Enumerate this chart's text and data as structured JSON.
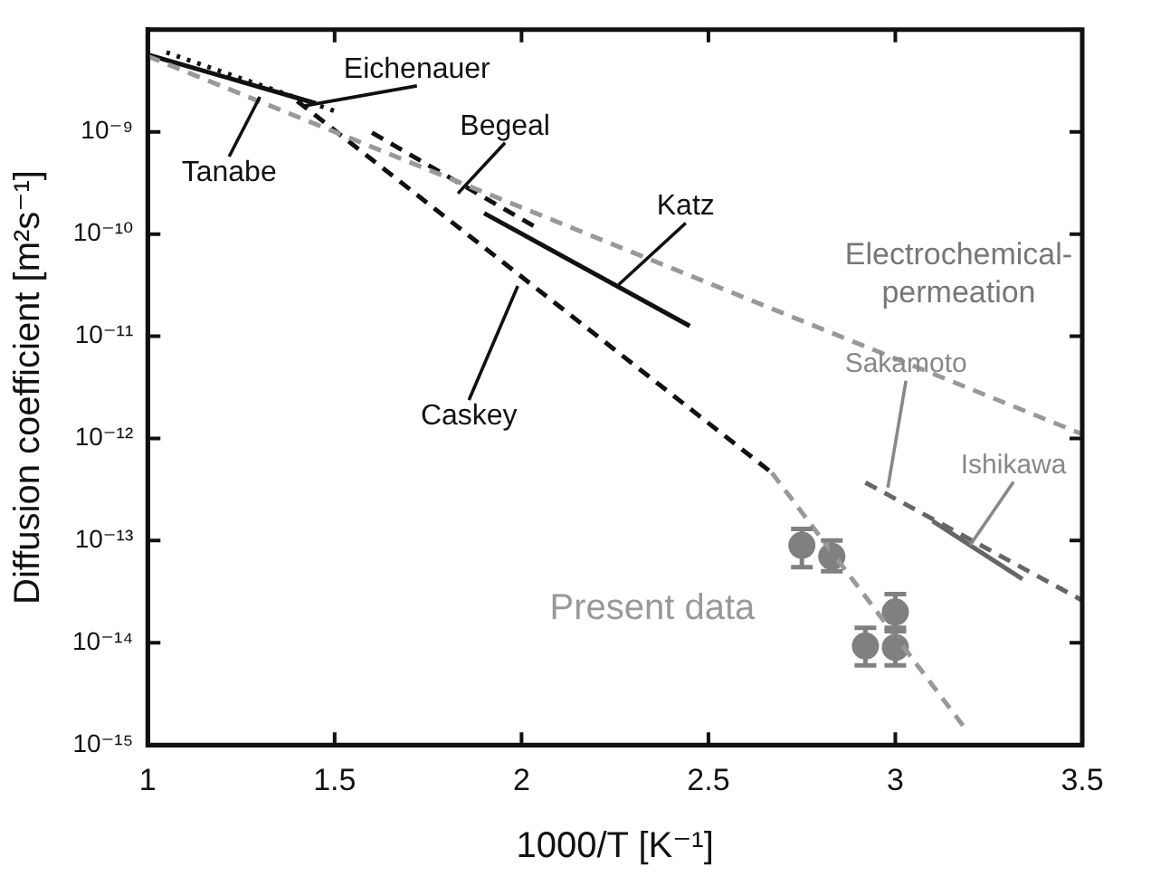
{
  "chart_data": {
    "type": "line",
    "xlabel": "1000/T [K⁻¹]",
    "ylabel": "Diffusion coefficient [m²s⁻¹]",
    "log": "y",
    "grid": false,
    "legend": false,
    "xlim": [
      1,
      3.5
    ],
    "xticks": [
      1,
      1.5,
      2,
      2.5,
      3,
      3.5
    ],
    "ylim": [
      1e-15,
      1e-08
    ],
    "yticks": [
      {
        "value": 1e-15,
        "label": "10⁻¹⁵"
      },
      {
        "value": 1e-14,
        "label": "10⁻¹⁴"
      },
      {
        "value": 1e-13,
        "label": "10⁻¹³"
      },
      {
        "value": 1e-12,
        "label": "10⁻¹²"
      },
      {
        "value": 1e-11,
        "label": "10⁻¹¹"
      },
      {
        "value": 1e-10,
        "label": "10⁻¹⁰"
      },
      {
        "value": 1e-09,
        "label": "10⁻⁹"
      },
      {
        "value": 1e-08,
        "label": null
      }
    ],
    "series": [
      {
        "type": "line",
        "color": "#999999",
        "line_style": "dashed",
        "x": [
          1.0,
          3.5
        ],
        "values": [
          5.5e-09,
          1.1e-12
        ]
      },
      {
        "type": "line",
        "color": "#111111",
        "line_style": "solid",
        "x": [
          1.0,
          1.45
        ],
        "values": [
          5.7e-09,
          1.9e-09
        ]
      },
      {
        "type": "line",
        "color": "#111111",
        "line_style": "dotted",
        "x": [
          1.05,
          1.5
        ],
        "values": [
          6e-09,
          1.6e-09
        ]
      },
      {
        "color": "#111111",
        "line_style": "dashed",
        "x": [
          1.6,
          2.05
        ],
        "values": [
          9.8e-10,
          1.1e-10
        ]
      },
      {
        "type": "line",
        "color": "#111111",
        "line_style": "solid",
        "x": [
          1.9,
          2.45
        ],
        "values": [
          1.6e-10,
          1.26e-11
        ]
      },
      {
        "type": "line",
        "color": "#111111",
        "line_style": "dashed",
        "x": [
          1.4,
          2.67
        ],
        "values": [
          2e-09,
          4.6e-13
        ]
      },
      {
        "type": "line",
        "color": "#999999",
        "line_style": "dashed",
        "x": [
          2.67,
          3.19
        ],
        "values": [
          4.6e-13,
          1.4e-15
        ]
      },
      {
        "type": "line",
        "color": "#666666",
        "line_style": "dashed",
        "x": [
          2.92,
          3.5
        ],
        "values": [
          3.7e-13,
          2.6e-14
        ]
      },
      {
        "type": "line",
        "color": "#666666",
        "line_style": "solid",
        "x": [
          3.1,
          3.34
        ],
        "values": [
          1.55e-13,
          4.2e-14
        ]
      },
      {
        "type": "scatter",
        "color": "#808080",
        "marker": "circle",
        "x": [
          2.75,
          2.83,
          2.92,
          3.0,
          3.0
        ],
        "values": [
          9e-14,
          7e-14,
          9.3e-15,
          2e-14,
          9e-15
        ],
        "errors": [
          [
            5.5e-14,
            1.3e-13
          ],
          [
            5e-14,
            1e-13
          ],
          [
            6e-15,
            1.4e-14
          ],
          [
            1.3e-14,
            3e-14
          ],
          [
            6e-15,
            1.4e-14
          ]
        ]
      }
    ],
    "annotations": [
      {
        "text": "Eichenauer",
        "x": 1.42,
        "y": 1.8e-09
      },
      {
        "text": "Tanabe",
        "x": 1.3,
        "y": 2.2e-09
      },
      {
        "text": "Begeal",
        "x": 1.83,
        "y": 2.5e-10
      },
      {
        "text": "Katz",
        "x": 2.26,
        "y": 3.2e-11
      },
      {
        "text": "Caskey",
        "x": 1.99,
        "y": 3.1e-11
      },
      {
        "text": "Electrochemical-\npermeation",
        "x": 2.85,
        "y": 1e-11
      },
      {
        "text": "Sakamoto",
        "x": 2.98,
        "y": 3.3e-13
      },
      {
        "text": "Ishikawa",
        "x": 3.2,
        "y": 9e-14
      },
      "Present data"
    ]
  }
}
